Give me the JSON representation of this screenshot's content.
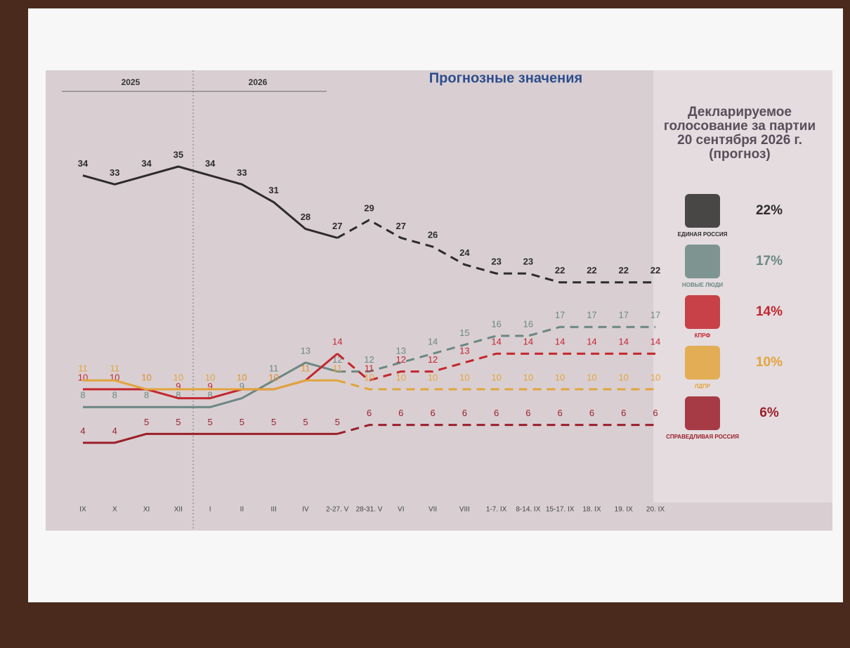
{
  "chart_data": {
    "type": "line",
    "title": "Прогнозные значения",
    "years": [
      "2025",
      "2026"
    ],
    "categories": [
      "IX",
      "X",
      "XI",
      "XII",
      "I",
      "II",
      "III",
      "IV",
      "2-27. V",
      "28-31. V",
      "VI",
      "VII",
      "VIII",
      "1-7. IX",
      "8-14. IX",
      "15-17. IX",
      "18. IX",
      "19. IX",
      "20. IX"
    ],
    "forecast_start": 8,
    "series": [
      {
        "name": "ЕДИНАЯ РОССИЯ",
        "color": "#2e2b2c",
        "values": [
          34,
          33,
          34,
          35,
          34,
          33,
          31,
          28,
          27,
          29,
          27,
          26,
          24,
          23,
          23,
          22,
          22,
          22,
          22
        ]
      },
      {
        "name": "НОВЫЕ ЛЮДИ",
        "color": "#6c8783",
        "values": [
          8,
          8,
          8,
          8,
          8,
          9,
          11,
          13,
          12,
          12,
          13,
          14,
          15,
          16,
          16,
          17,
          17,
          17,
          17
        ]
      },
      {
        "name": "КПРФ",
        "color": "#c3262e",
        "values": [
          10,
          10,
          10,
          9,
          9,
          10,
          10,
          11,
          14,
          11,
          12,
          12,
          13,
          14,
          14,
          14,
          14,
          14,
          14
        ]
      },
      {
        "name": "ЛДПР",
        "color": "#e2a43c",
        "values": [
          11,
          11,
          10,
          10,
          10,
          10,
          10,
          11,
          11,
          10,
          10,
          10,
          10,
          10,
          10,
          10,
          10,
          10,
          10
        ]
      },
      {
        "name": "СПРАВЕДЛИВАЯ РОССИЯ",
        "color": "#9b1f2b",
        "values": [
          4,
          4,
          5,
          5,
          5,
          5,
          5,
          5,
          5,
          6,
          6,
          6,
          6,
          6,
          6,
          6,
          6,
          6,
          6
        ]
      }
    ],
    "forecast": {
      "title": "Декларируемое голосование за партии 20 сентября 2026 г. (прогноз)",
      "values": [
        22,
        17,
        14,
        10,
        6
      ],
      "value_labels": [
        "22%",
        "17%",
        "14%",
        "10%",
        "6%"
      ]
    }
  }
}
